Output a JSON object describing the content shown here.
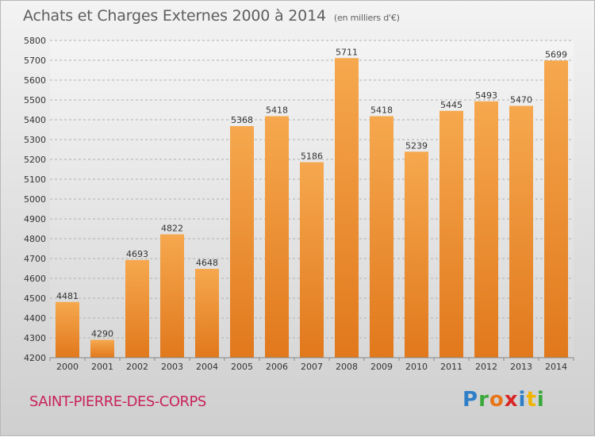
{
  "header": {
    "title": "Achats et Charges Externes 2000 à 2014",
    "unit": "(en milliers d'€)"
  },
  "footer": {
    "commune": "SAINT-PIERRE-DES-CORPS",
    "logo": "Proxiti"
  },
  "colors": {
    "bar_top": "#f6a84e",
    "bar_bottom": "#e1781c",
    "grid": "#b0b0b0",
    "axis_text": "#333333",
    "commune": "#c8245a"
  },
  "chart_data": {
    "type": "bar",
    "title": "Achats et Charges Externes 2000 à 2014",
    "subtitle": "(en milliers d'€)",
    "categories": [
      "2000",
      "2001",
      "2002",
      "2003",
      "2004",
      "2005",
      "2006",
      "2007",
      "2008",
      "2009",
      "2010",
      "2011",
      "2012",
      "2013",
      "2014"
    ],
    "values": [
      4481,
      4290,
      4693,
      4822,
      4648,
      5368,
      5418,
      5186,
      5711,
      5418,
      5239,
      5445,
      5493,
      5470,
      5699
    ],
    "ylim": [
      4200,
      5800
    ],
    "yticks": [
      4200,
      4300,
      4400,
      4500,
      4600,
      4700,
      4800,
      4900,
      5000,
      5100,
      5200,
      5300,
      5400,
      5500,
      5600,
      5700,
      5800
    ],
    "grid": true,
    "data_labels": true
  }
}
